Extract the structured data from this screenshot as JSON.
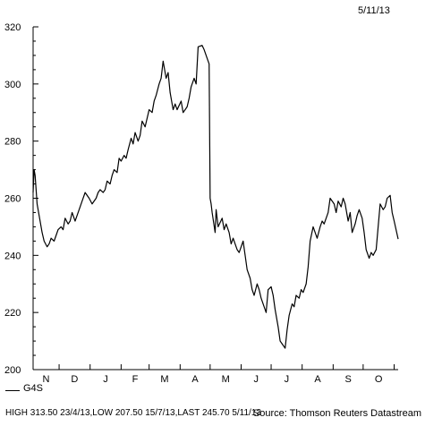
{
  "header": {
    "date": "5/11/13"
  },
  "legend": {
    "series_name": "G4S"
  },
  "footer": {
    "stats": "HIGH 313.50 23/4/13,LOW 207.50 15/7/13,LAST 245.70 5/11/13",
    "source": "Source: Thomson Reuters Datastream"
  },
  "chart_data": {
    "type": "line",
    "title": "",
    "xlabel": "",
    "ylabel": "",
    "ylim": [
      200,
      320
    ],
    "yticks": [
      200,
      220,
      240,
      260,
      280,
      300,
      320
    ],
    "xlim": [
      "2012-11-05",
      "2013-11-05"
    ],
    "month_labels": [
      "N",
      "D",
      "J",
      "F",
      "M",
      "A",
      "M",
      "J",
      "J",
      "A",
      "S",
      "O"
    ],
    "grid": false,
    "series": [
      {
        "name": "G4S",
        "color": "#000000",
        "points": [
          [
            "2012-11-05",
            262
          ],
          [
            "2012-11-06",
            270
          ],
          [
            "2012-11-07",
            268
          ],
          [
            "2012-11-09",
            258
          ],
          [
            "2012-11-12",
            252
          ],
          [
            "2012-11-14",
            248
          ],
          [
            "2012-11-16",
            245
          ],
          [
            "2012-11-19",
            243
          ],
          [
            "2012-11-21",
            244
          ],
          [
            "2012-11-23",
            246
          ],
          [
            "2012-11-26",
            245
          ],
          [
            "2012-11-28",
            247
          ],
          [
            "2012-11-30",
            249
          ],
          [
            "2012-12-03",
            250
          ],
          [
            "2012-12-05",
            249
          ],
          [
            "2012-12-07",
            253
          ],
          [
            "2012-12-10",
            251
          ],
          [
            "2012-12-12",
            252
          ],
          [
            "2012-12-14",
            255
          ],
          [
            "2012-12-17",
            252
          ],
          [
            "2012-12-19",
            254
          ],
          [
            "2012-12-21",
            256
          ],
          [
            "2012-12-24",
            259
          ],
          [
            "2012-12-27",
            262
          ],
          [
            "2012-12-31",
            260
          ],
          [
            "2013-01-03",
            258
          ],
          [
            "2013-01-07",
            260
          ],
          [
            "2013-01-09",
            262
          ],
          [
            "2013-01-11",
            263
          ],
          [
            "2013-01-14",
            262
          ],
          [
            "2013-01-16",
            263
          ],
          [
            "2013-01-18",
            266
          ],
          [
            "2013-01-21",
            265
          ],
          [
            "2013-01-23",
            268
          ],
          [
            "2013-01-25",
            270
          ],
          [
            "2013-01-28",
            269
          ],
          [
            "2013-01-30",
            274
          ],
          [
            "2013-02-01",
            273
          ],
          [
            "2013-02-04",
            275
          ],
          [
            "2013-02-06",
            274
          ],
          [
            "2013-02-08",
            277
          ],
          [
            "2013-02-11",
            281
          ],
          [
            "2013-02-13",
            279
          ],
          [
            "2013-02-15",
            283
          ],
          [
            "2013-02-18",
            280
          ],
          [
            "2013-02-20",
            282
          ],
          [
            "2013-02-22",
            287
          ],
          [
            "2013-02-25",
            285
          ],
          [
            "2013-02-27",
            288
          ],
          [
            "2013-03-01",
            291
          ],
          [
            "2013-03-04",
            290
          ],
          [
            "2013-03-06",
            294
          ],
          [
            "2013-03-08",
            296
          ],
          [
            "2013-03-11",
            300
          ],
          [
            "2013-03-13",
            302
          ],
          [
            "2013-03-15",
            308
          ],
          [
            "2013-03-18",
            302
          ],
          [
            "2013-03-20",
            304
          ],
          [
            "2013-03-22",
            297
          ],
          [
            "2013-03-25",
            291
          ],
          [
            "2013-03-27",
            293
          ],
          [
            "2013-03-29",
            291
          ],
          [
            "2013-04-02",
            294
          ],
          [
            "2013-04-04",
            290
          ],
          [
            "2013-04-08",
            292
          ],
          [
            "2013-04-10",
            295
          ],
          [
            "2013-04-12",
            299
          ],
          [
            "2013-04-15",
            302
          ],
          [
            "2013-04-17",
            300
          ],
          [
            "2013-04-19",
            313
          ],
          [
            "2013-04-23",
            313.5
          ],
          [
            "2013-04-25",
            312
          ],
          [
            "2013-04-29",
            308
          ],
          [
            "2013-04-30",
            307
          ],
          [
            "2013-05-01",
            260
          ],
          [
            "2013-05-02",
            258
          ],
          [
            "2013-05-03",
            255
          ],
          [
            "2013-05-06",
            248
          ],
          [
            "2013-05-07",
            256
          ],
          [
            "2013-05-09",
            250
          ],
          [
            "2013-05-13",
            253
          ],
          [
            "2013-05-15",
            249
          ],
          [
            "2013-05-17",
            251
          ],
          [
            "2013-05-20",
            248
          ],
          [
            "2013-05-22",
            244
          ],
          [
            "2013-05-24",
            246
          ],
          [
            "2013-05-28",
            242
          ],
          [
            "2013-05-30",
            241
          ],
          [
            "2013-06-03",
            245
          ],
          [
            "2013-06-05",
            240
          ],
          [
            "2013-06-07",
            235
          ],
          [
            "2013-06-10",
            232
          ],
          [
            "2013-06-12",
            228
          ],
          [
            "2013-06-14",
            226
          ],
          [
            "2013-06-17",
            230
          ],
          [
            "2013-06-19",
            228
          ],
          [
            "2013-06-21",
            225
          ],
          [
            "2013-06-24",
            222
          ],
          [
            "2013-06-26",
            220
          ],
          [
            "2013-06-28",
            228
          ],
          [
            "2013-07-01",
            229
          ],
          [
            "2013-07-03",
            226
          ],
          [
            "2013-07-05",
            221
          ],
          [
            "2013-07-08",
            215
          ],
          [
            "2013-07-10",
            210
          ],
          [
            "2013-07-12",
            209
          ],
          [
            "2013-07-15",
            207.5
          ],
          [
            "2013-07-17",
            214
          ],
          [
            "2013-07-19",
            219
          ],
          [
            "2013-07-22",
            223
          ],
          [
            "2013-07-24",
            222
          ],
          [
            "2013-07-26",
            226
          ],
          [
            "2013-07-29",
            225
          ],
          [
            "2013-07-31",
            228
          ],
          [
            "2013-08-02",
            227
          ],
          [
            "2013-08-05",
            230
          ],
          [
            "2013-08-07",
            236
          ],
          [
            "2013-08-09",
            245
          ],
          [
            "2013-08-12",
            250
          ],
          [
            "2013-08-14",
            248
          ],
          [
            "2013-08-16",
            246
          ],
          [
            "2013-08-19",
            250
          ],
          [
            "2013-08-21",
            252
          ],
          [
            "2013-08-23",
            251
          ],
          [
            "2013-08-27",
            255
          ],
          [
            "2013-08-29",
            260
          ],
          [
            "2013-09-02",
            258
          ],
          [
            "2013-09-04",
            255
          ],
          [
            "2013-09-06",
            259
          ],
          [
            "2013-09-09",
            257
          ],
          [
            "2013-09-11",
            260
          ],
          [
            "2013-09-13",
            258
          ],
          [
            "2013-09-16",
            252
          ],
          [
            "2013-09-18",
            255
          ],
          [
            "2013-09-20",
            248
          ],
          [
            "2013-09-23",
            251
          ],
          [
            "2013-09-25",
            254
          ],
          [
            "2013-09-27",
            256
          ],
          [
            "2013-09-30",
            253
          ],
          [
            "2013-10-02",
            248
          ],
          [
            "2013-10-04",
            242
          ],
          [
            "2013-10-07",
            239
          ],
          [
            "2013-10-09",
            241
          ],
          [
            "2013-10-11",
            240
          ],
          [
            "2013-10-14",
            242
          ],
          [
            "2013-10-16",
            250
          ],
          [
            "2013-10-18",
            258
          ],
          [
            "2013-10-21",
            256
          ],
          [
            "2013-10-23",
            257
          ],
          [
            "2013-10-25",
            260
          ],
          [
            "2013-10-28",
            261
          ],
          [
            "2013-10-30",
            255
          ],
          [
            "2013-11-01",
            252
          ],
          [
            "2013-11-05",
            245.7
          ]
        ]
      }
    ]
  }
}
